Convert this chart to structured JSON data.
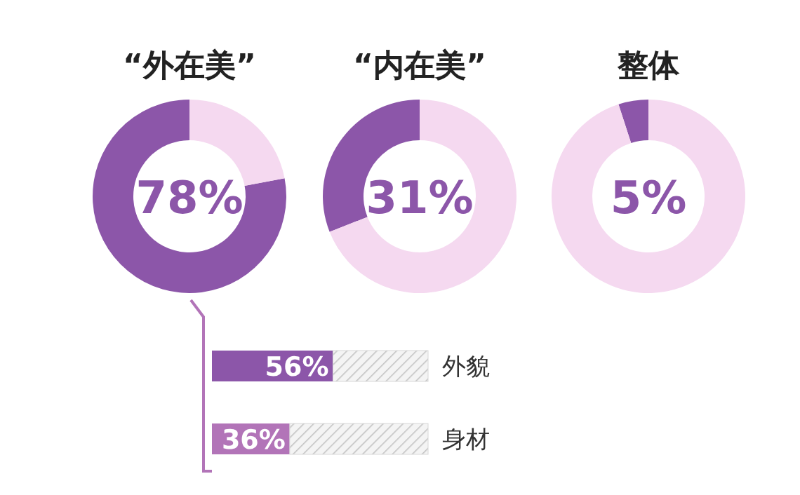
{
  "chart_data": [
    {
      "type": "donut",
      "title": "“外在美”",
      "categories": [
        null,
        null
      ],
      "values": [
        78,
        22
      ],
      "colors": [
        "#8c56a9",
        "#f5d9f0"
      ],
      "annotations": [
        "78%"
      ]
    },
    {
      "type": "donut",
      "title": "“内在美”",
      "categories": [
        null,
        null
      ],
      "values": [
        31,
        69
      ],
      "colors": [
        "#8c56a9",
        "#f5d9f0"
      ],
      "annotations": [
        "31%"
      ]
    },
    {
      "type": "donut",
      "title": "整体",
      "categories": [
        null,
        null
      ],
      "values": [
        5,
        95
      ],
      "colors": [
        "#8c56a9",
        "#f5d9f0"
      ],
      "annotations": [
        "5%"
      ]
    },
    {
      "type": "bar",
      "orientation": "horizontal",
      "stacked": true,
      "categories": [
        "外貌",
        "身材"
      ],
      "xlim": [
        0,
        100
      ],
      "series": [
        {
          "colors": [
            "#8c56a9",
            "#b274b8"
          ],
          "values": [
            56,
            36
          ],
          "value_labels": [
            "56%",
            "36%"
          ]
        },
        {
          "color": "#d8d8d8",
          "values": [
            44,
            64
          ]
        }
      ]
    }
  ]
}
